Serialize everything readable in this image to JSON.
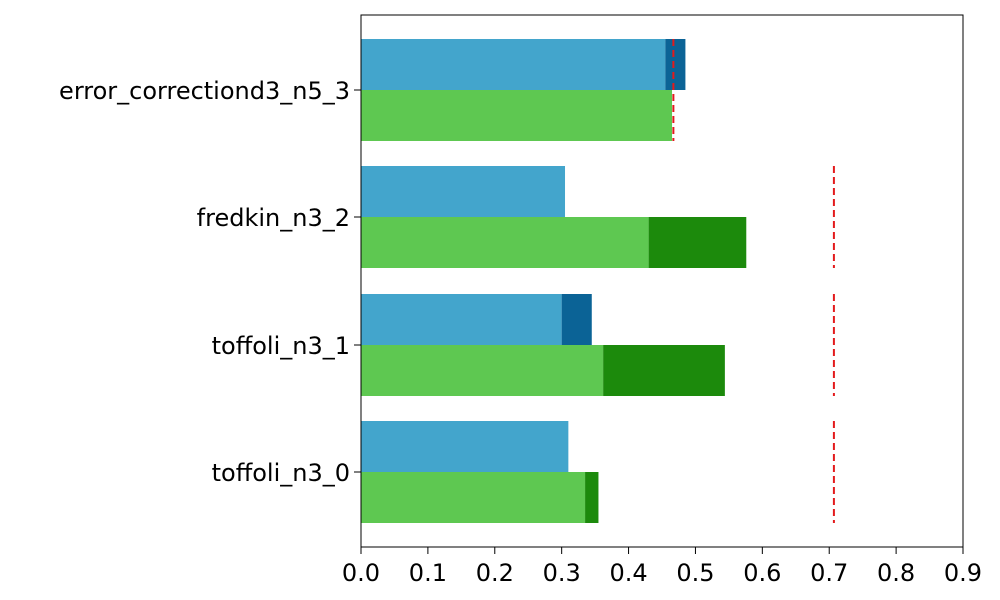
{
  "chart_data": {
    "type": "bar",
    "orientation": "horizontal",
    "categories": [
      "toffoli_n3_0",
      "toffoli_n3_1",
      "fredkin_n3_2",
      "error_correctiond3_n5_3"
    ],
    "xlim": [
      0.0,
      0.9
    ],
    "xticks": [
      "0.0",
      "0.1",
      "0.2",
      "0.3",
      "0.4",
      "0.5",
      "0.6",
      "0.7",
      "0.8",
      "0.9"
    ],
    "grid": false,
    "series": [
      {
        "role": "upper bar (light blue)",
        "color": "#43a5cc",
        "values": [
          0.31,
          0.3,
          0.305,
          0.455
        ]
      },
      {
        "role": "upper bar extension (dark blue)",
        "color": "#0b6396",
        "start": [
          0.31,
          0.3,
          0.305,
          0.455
        ],
        "end": [
          0.31,
          0.345,
          0.305,
          0.485
        ]
      },
      {
        "role": "lower bar (light green)",
        "color": "#5ec851",
        "values": [
          0.335,
          0.362,
          0.43,
          0.465
        ]
      },
      {
        "role": "lower bar extension (dark green)",
        "color": "#1c8a0c",
        "start": [
          0.335,
          0.362,
          0.43,
          0.465
        ],
        "end": [
          0.355,
          0.544,
          0.576,
          0.465
        ]
      }
    ],
    "reference_lines": {
      "color": "#e31a1c",
      "style": "dashed",
      "values": [
        0.707,
        0.707,
        0.707,
        0.467
      ]
    }
  }
}
